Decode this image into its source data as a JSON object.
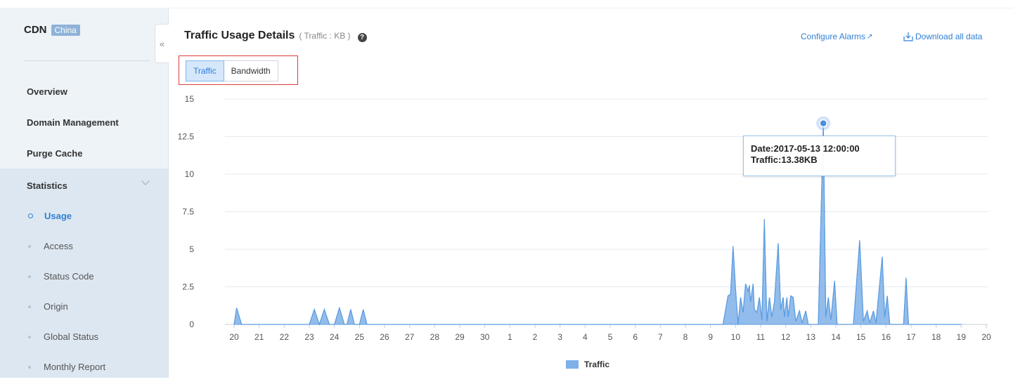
{
  "sidebar": {
    "brand": "CDN",
    "badge": "China",
    "collapse_icon": "«",
    "items": [
      {
        "label": "Overview"
      },
      {
        "label": "Domain Management"
      },
      {
        "label": "Purge Cache"
      },
      {
        "label": "Statistics"
      }
    ],
    "sub_items": [
      {
        "label": "Usage",
        "active": true
      },
      {
        "label": "Access"
      },
      {
        "label": "Status Code"
      },
      {
        "label": "Origin"
      },
      {
        "label": "Global Status"
      },
      {
        "label": "Monthly Report"
      }
    ]
  },
  "header": {
    "title": "Traffic Usage Details",
    "subtitle": "( Traffic : KB )",
    "help_icon": "?",
    "configure_alarms": "Configure Alarms",
    "download_all": "Download all data"
  },
  "tabs": [
    {
      "label": "Traffic",
      "active": true
    },
    {
      "label": "Bandwidth",
      "active": false
    }
  ],
  "tooltip": {
    "date_line": "Date:2017-05-13 12:00:00",
    "value_line": "Traffic:13.38KB"
  },
  "legend": {
    "label": "Traffic"
  },
  "colors": {
    "accent": "#2f7fd6",
    "area": "#7fb0e8",
    "line": "#5c9ce0"
  },
  "chart_data": {
    "type": "area",
    "ylim": [
      0,
      15
    ],
    "yticks": [
      "0",
      "2.5",
      "5",
      "7.5",
      "10",
      "12.5",
      "15"
    ],
    "x_tick_labels": [
      "20",
      "21",
      "22",
      "23",
      "24",
      "25",
      "26",
      "27",
      "28",
      "29",
      "30",
      "1",
      "2",
      "3",
      "4",
      "5",
      "6",
      "7",
      "8",
      "9",
      "10",
      "11",
      "12",
      "13",
      "14",
      "15",
      "16",
      "17",
      "18",
      "19",
      "20"
    ],
    "legend": "Traffic",
    "series": [
      {
        "name": "Traffic",
        "points": [
          [
            0.0,
            0
          ],
          [
            0.1,
            1.1
          ],
          [
            0.3,
            0
          ],
          [
            3.0,
            0
          ],
          [
            3.2,
            1.0
          ],
          [
            3.4,
            0
          ],
          [
            3.6,
            1.0
          ],
          [
            3.8,
            0
          ],
          [
            4.0,
            0
          ],
          [
            4.2,
            1.1
          ],
          [
            4.4,
            0
          ],
          [
            4.5,
            0
          ],
          [
            4.65,
            1.0
          ],
          [
            4.8,
            0
          ],
          [
            5.0,
            0
          ],
          [
            5.15,
            1.0
          ],
          [
            5.3,
            0
          ],
          [
            19.5,
            0
          ],
          [
            19.7,
            1.9
          ],
          [
            19.8,
            2.0
          ],
          [
            19.9,
            5.2
          ],
          [
            20.0,
            2.4
          ],
          [
            20.05,
            1.2
          ],
          [
            20.1,
            0
          ],
          [
            20.2,
            1.8
          ],
          [
            20.3,
            0.8
          ],
          [
            20.4,
            2.7
          ],
          [
            20.5,
            2.2
          ],
          [
            20.55,
            2.6
          ],
          [
            20.6,
            1.5
          ],
          [
            20.7,
            2.7
          ],
          [
            20.75,
            1.0
          ],
          [
            20.85,
            0.8
          ],
          [
            20.95,
            1.8
          ],
          [
            21.05,
            0.3
          ],
          [
            21.15,
            7.0
          ],
          [
            21.25,
            0.2
          ],
          [
            21.35,
            1.8
          ],
          [
            21.45,
            0.5
          ],
          [
            21.55,
            1.5
          ],
          [
            21.7,
            5.4
          ],
          [
            21.8,
            1.0
          ],
          [
            21.9,
            1.8
          ],
          [
            21.95,
            0.5
          ],
          [
            22.05,
            1.8
          ],
          [
            22.1,
            0.5
          ],
          [
            22.2,
            1.9
          ],
          [
            22.3,
            1.8
          ],
          [
            22.4,
            0.2
          ],
          [
            22.55,
            0.9
          ],
          [
            22.65,
            0.1
          ],
          [
            22.8,
            0.9
          ],
          [
            22.9,
            0
          ],
          [
            23.3,
            0
          ],
          [
            23.5,
            13.38
          ],
          [
            23.6,
            0.5
          ],
          [
            23.7,
            1.8
          ],
          [
            23.8,
            0.3
          ],
          [
            23.95,
            2.9
          ],
          [
            24.05,
            0
          ],
          [
            24.7,
            0
          ],
          [
            24.95,
            5.6
          ],
          [
            25.1,
            0.2
          ],
          [
            25.25,
            0.9
          ],
          [
            25.35,
            0.1
          ],
          [
            25.5,
            0.9
          ],
          [
            25.6,
            0.1
          ],
          [
            25.85,
            4.5
          ],
          [
            25.95,
            0.5
          ],
          [
            26.05,
            1.9
          ],
          [
            26.15,
            0
          ],
          [
            26.7,
            0
          ],
          [
            26.8,
            3.1
          ],
          [
            26.9,
            0
          ],
          [
            29.0,
            0
          ]
        ]
      }
    ],
    "highlight": {
      "x_label": "13",
      "date": "2017-05-13 12:00:00",
      "value": 13.38
    }
  }
}
